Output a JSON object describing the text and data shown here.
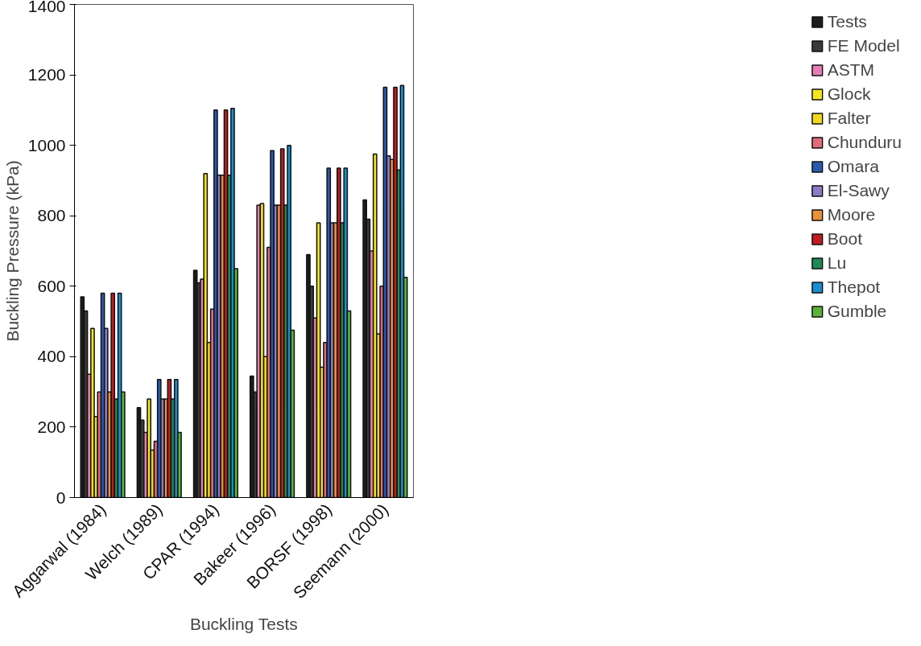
{
  "chart_data": {
    "type": "bar",
    "xlabel": "Buckling Tests",
    "ylabel": "Buckling Pressure (kPa)",
    "categories": [
      "Aggarwal (1984)",
      "Welch (1989)",
      "CPAR (1994)",
      "Bakeer (1996)",
      "BORSF (1998)",
      "Seemann (2000)"
    ],
    "ylim": [
      0,
      1400
    ],
    "yticks": [
      0,
      200,
      400,
      600,
      800,
      1000,
      1200,
      1400
    ],
    "grid": false,
    "legend": "right",
    "series": [
      {
        "name": "Tests",
        "color": "#1a1f1c",
        "values": [
          570,
          255,
          645,
          345,
          690,
          845
        ]
      },
      {
        "name": "FE Model",
        "color": "#3a3a3a",
        "values": [
          530,
          220,
          610,
          300,
          600,
          790
        ]
      },
      {
        "name": "ASTM",
        "color": "#e67fb5",
        "values": [
          350,
          185,
          620,
          830,
          510,
          700
        ]
      },
      {
        "name": "Glock",
        "color": "#f5e61e",
        "values": [
          480,
          280,
          920,
          835,
          780,
          975
        ]
      },
      {
        "name": "Falter",
        "color": "#f2d820",
        "values": [
          230,
          135,
          440,
          400,
          370,
          465
        ]
      },
      {
        "name": "Chunduru",
        "color": "#e06c7a",
        "values": [
          300,
          160,
          535,
          710,
          440,
          600
        ]
      },
      {
        "name": "Omara",
        "color": "#2a5aad",
        "values": [
          580,
          335,
          1100,
          985,
          935,
          1165
        ]
      },
      {
        "name": "El-Sawy",
        "color": "#8f7bc4",
        "values": [
          480,
          280,
          915,
          830,
          780,
          970
        ]
      },
      {
        "name": "Moore",
        "color": "#e8923a",
        "values": [
          300,
          280,
          915,
          830,
          780,
          960
        ]
      },
      {
        "name": "Boot",
        "color": "#c01c20",
        "values": [
          580,
          335,
          1100,
          990,
          935,
          1165
        ]
      },
      {
        "name": "Lu",
        "color": "#1f8a55",
        "values": [
          280,
          280,
          915,
          830,
          780,
          930
        ]
      },
      {
        "name": "Thepot",
        "color": "#1a8fcf",
        "values": [
          580,
          335,
          1105,
          1000,
          935,
          1170
        ]
      },
      {
        "name": "Gumble",
        "color": "#5db33a",
        "values": [
          300,
          185,
          650,
          475,
          530,
          625
        ]
      }
    ]
  }
}
